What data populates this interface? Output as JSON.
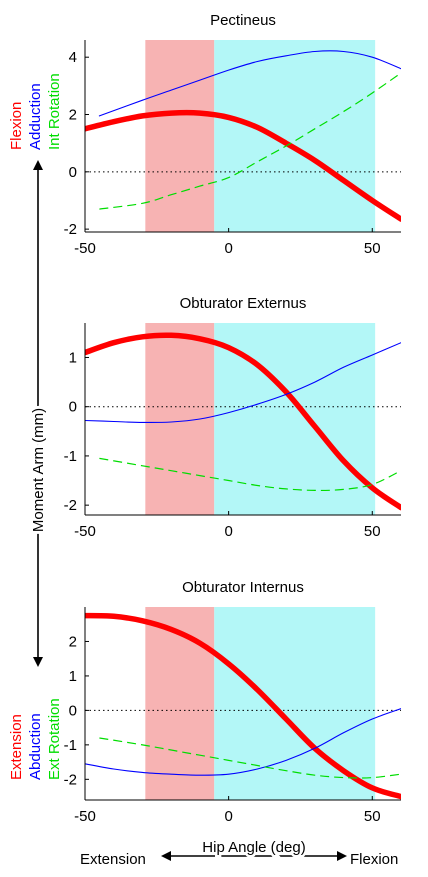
{
  "colors": {
    "flexion": "#ff0000",
    "adduction": "#0000ff",
    "rotation": "#00dd00",
    "region_extension": "#f7b3b3",
    "region_flexion": "#b3f7f7",
    "zero_line": "#000000"
  },
  "figure": {
    "ylabel": "Moment Arm (mm)",
    "xlabel": "Hip Angle (deg)",
    "x_left_label": "Extension",
    "x_right_label": "Flexion",
    "top_side_labels": {
      "flexion": "Flexion",
      "adduction": "Adduction",
      "rotation": "Int Rotation"
    },
    "bottom_side_labels": {
      "flexion": "Extension",
      "adduction": "Abduction",
      "rotation": "Ext Rotation"
    }
  },
  "chart_data": [
    {
      "type": "line",
      "title": "Pectineus",
      "xlim": [
        -50,
        60
      ],
      "ylim": [
        -2.1,
        4.6
      ],
      "xticks": [
        -50,
        0,
        50
      ],
      "yticks": [
        -2,
        0,
        2,
        4
      ],
      "regions": [
        {
          "x": [
            -29,
            -5
          ],
          "color": "extension"
        },
        {
          "x": [
            -5,
            51
          ],
          "color": "flexion"
        }
      ],
      "series": [
        {
          "key": "flexion",
          "color_key": "flexion",
          "style": "thick",
          "x": [
            -50,
            -40,
            -30,
            -20,
            -10,
            0,
            10,
            20,
            30,
            40,
            50,
            60
          ],
          "y": [
            1.5,
            1.75,
            1.95,
            2.05,
            2.05,
            1.9,
            1.55,
            1.0,
            0.4,
            -0.3,
            -1.0,
            -1.65
          ]
        },
        {
          "key": "adduction",
          "color_key": "adduction",
          "style": "thin",
          "x": [
            -45,
            -30,
            -20,
            -10,
            0,
            10,
            20,
            30,
            40,
            50,
            60
          ],
          "y": [
            1.95,
            2.5,
            2.85,
            3.2,
            3.55,
            3.85,
            4.05,
            4.2,
            4.2,
            4.0,
            3.6
          ]
        },
        {
          "key": "rotation",
          "color_key": "rotation",
          "style": "dashed",
          "x": [
            -45,
            -30,
            -20,
            -10,
            0,
            10,
            20,
            30,
            40,
            50,
            60
          ],
          "y": [
            -1.3,
            -1.1,
            -0.8,
            -0.5,
            -0.2,
            0.35,
            0.9,
            1.5,
            2.1,
            2.75,
            3.45
          ]
        }
      ]
    },
    {
      "type": "line",
      "title": "Obturator Externus",
      "xlim": [
        -50,
        60
      ],
      "ylim": [
        -2.2,
        1.7
      ],
      "xticks": [
        -50,
        0,
        50
      ],
      "yticks": [
        -2,
        -1,
        0,
        1
      ],
      "regions": [
        {
          "x": [
            -29,
            -5
          ],
          "color": "extension"
        },
        {
          "x": [
            -5,
            51
          ],
          "color": "flexion"
        }
      ],
      "series": [
        {
          "key": "flexion",
          "color_key": "flexion",
          "style": "thick",
          "x": [
            -50,
            -40,
            -30,
            -20,
            -10,
            0,
            10,
            20,
            30,
            40,
            50,
            60
          ],
          "y": [
            1.1,
            1.3,
            1.42,
            1.45,
            1.38,
            1.2,
            0.85,
            0.3,
            -0.4,
            -1.1,
            -1.65,
            -2.05
          ]
        },
        {
          "key": "adduction",
          "color_key": "adduction",
          "style": "thin",
          "x": [
            -50,
            -40,
            -30,
            -20,
            -10,
            0,
            10,
            20,
            30,
            40,
            50,
            60
          ],
          "y": [
            -0.28,
            -0.3,
            -0.32,
            -0.31,
            -0.25,
            -0.12,
            0.05,
            0.25,
            0.5,
            0.8,
            1.05,
            1.3
          ]
        },
        {
          "key": "rotation",
          "color_key": "rotation",
          "style": "dashed",
          "x": [
            -45,
            -30,
            -20,
            -10,
            0,
            10,
            20,
            30,
            40,
            50,
            60
          ],
          "y": [
            -1.05,
            -1.2,
            -1.3,
            -1.4,
            -1.5,
            -1.6,
            -1.67,
            -1.7,
            -1.68,
            -1.58,
            -1.3
          ]
        }
      ]
    },
    {
      "type": "line",
      "title": "Obturator Internus",
      "xlim": [
        -50,
        60
      ],
      "ylim": [
        -2.6,
        3.0
      ],
      "xticks": [
        -50,
        0,
        50
      ],
      "yticks": [
        -2,
        -1,
        0,
        1,
        2
      ],
      "regions": [
        {
          "x": [
            -29,
            -5
          ],
          "color": "extension"
        },
        {
          "x": [
            -5,
            51
          ],
          "color": "flexion"
        }
      ],
      "series": [
        {
          "key": "flexion",
          "color_key": "flexion",
          "style": "thick",
          "x": [
            -50,
            -40,
            -30,
            -20,
            -10,
            0,
            10,
            20,
            30,
            40,
            50,
            60
          ],
          "y": [
            2.75,
            2.73,
            2.6,
            2.35,
            1.95,
            1.35,
            0.6,
            -0.25,
            -1.1,
            -1.75,
            -2.25,
            -2.5
          ]
        },
        {
          "key": "adduction",
          "color_key": "adduction",
          "style": "thin",
          "x": [
            -50,
            -40,
            -30,
            -20,
            -10,
            0,
            10,
            20,
            30,
            40,
            50,
            60
          ],
          "y": [
            -1.55,
            -1.7,
            -1.8,
            -1.85,
            -1.88,
            -1.85,
            -1.7,
            -1.45,
            -1.1,
            -0.65,
            -0.25,
            0.05
          ]
        },
        {
          "key": "rotation",
          "color_key": "rotation",
          "style": "dashed",
          "x": [
            -45,
            -30,
            -20,
            -10,
            0,
            10,
            20,
            30,
            40,
            50,
            60
          ],
          "y": [
            -0.8,
            -1.0,
            -1.15,
            -1.3,
            -1.45,
            -1.6,
            -1.75,
            -1.88,
            -1.95,
            -1.95,
            -1.85
          ]
        }
      ]
    }
  ]
}
